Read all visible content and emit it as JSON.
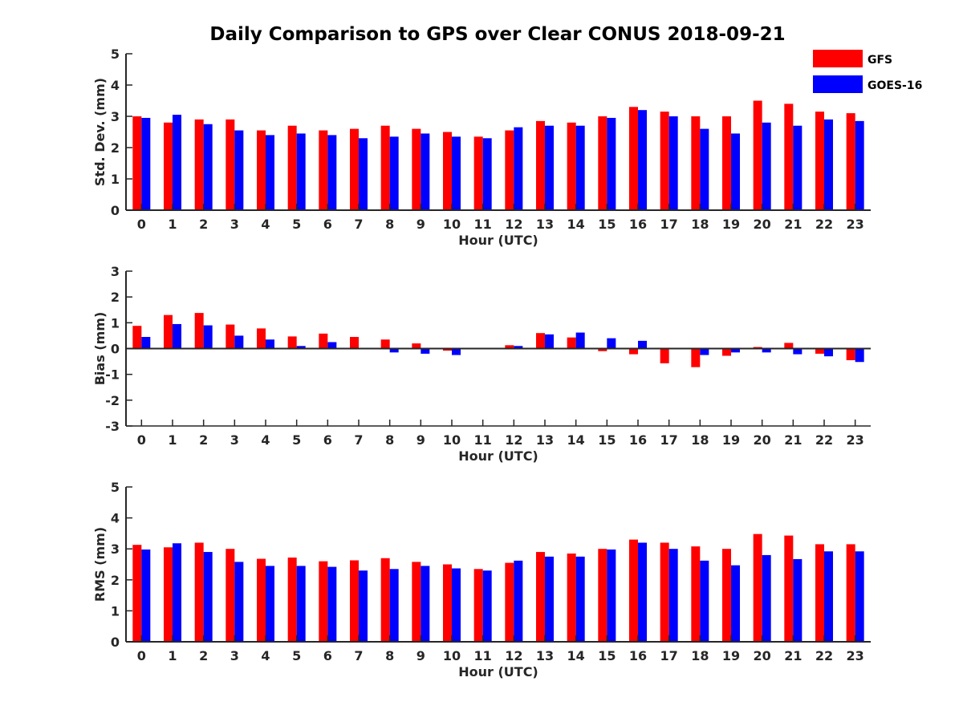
{
  "figure_title": "Daily Comparison to GPS over Clear CONUS 2018-09-21",
  "colors": {
    "GFS": "#ff0000",
    "GOES-16": "#0000ff",
    "axis": "#262626"
  },
  "legend": [
    {
      "name": "GFS",
      "color": "#ff0000"
    },
    {
      "name": "GOES-16",
      "color": "#0000ff"
    }
  ],
  "chart_data": [
    {
      "type": "bar",
      "title": "Daily Comparison to GPS over Clear CONUS 2018-09-21",
      "xlabel": "Hour (UTC)",
      "ylabel": "Std. Dev. (mm)",
      "ylim": [
        0,
        5
      ],
      "yticks": [
        0,
        1,
        2,
        3,
        4,
        5
      ],
      "grid": false,
      "legend_position": "top-right",
      "categories": [
        "0",
        "1",
        "2",
        "3",
        "4",
        "5",
        "6",
        "7",
        "8",
        "9",
        "10",
        "11",
        "12",
        "13",
        "14",
        "15",
        "16",
        "17",
        "18",
        "19",
        "20",
        "21",
        "22",
        "23"
      ],
      "series": [
        {
          "name": "GFS",
          "values": [
            3.0,
            2.8,
            2.9,
            2.9,
            2.55,
            2.7,
            2.55,
            2.6,
            2.7,
            2.6,
            2.5,
            2.35,
            2.55,
            2.85,
            2.8,
            3.0,
            3.3,
            3.15,
            3.0,
            3.0,
            3.5,
            3.4,
            3.15,
            3.1
          ]
        },
        {
          "name": "GOES-16",
          "values": [
            2.95,
            3.05,
            2.75,
            2.55,
            2.4,
            2.45,
            2.4,
            2.3,
            2.35,
            2.45,
            2.35,
            2.3,
            2.65,
            2.7,
            2.7,
            2.95,
            3.2,
            3.0,
            2.6,
            2.45,
            2.8,
            2.7,
            2.9,
            2.85
          ]
        }
      ]
    },
    {
      "type": "bar",
      "xlabel": "Hour (UTC)",
      "ylabel": "Bias (mm)",
      "ylim": [
        -3,
        3
      ],
      "yticks": [
        -3,
        -2,
        -1,
        0,
        1,
        2,
        3
      ],
      "grid": false,
      "categories": [
        "0",
        "1",
        "2",
        "3",
        "4",
        "5",
        "6",
        "7",
        "8",
        "9",
        "10",
        "11",
        "12",
        "13",
        "14",
        "15",
        "16",
        "17",
        "18",
        "19",
        "20",
        "21",
        "22",
        "23"
      ],
      "series": [
        {
          "name": "GFS",
          "values": [
            0.88,
            1.3,
            1.38,
            0.93,
            0.78,
            0.47,
            0.58,
            0.45,
            0.35,
            0.2,
            -0.08,
            0.02,
            0.13,
            0.6,
            0.43,
            -0.1,
            -0.22,
            -0.57,
            -0.72,
            -0.28,
            0.06,
            0.22,
            -0.2,
            -0.45
          ]
        },
        {
          "name": "GOES-16",
          "values": [
            0.45,
            0.95,
            0.9,
            0.5,
            0.35,
            0.1,
            0.25,
            0.0,
            -0.15,
            -0.2,
            -0.25,
            0.0,
            0.1,
            0.55,
            0.62,
            0.4,
            0.3,
            0.0,
            -0.25,
            -0.15,
            -0.15,
            -0.22,
            -0.3,
            -0.52
          ]
        }
      ]
    },
    {
      "type": "bar",
      "xlabel": "Hour (UTC)",
      "ylabel": "RMS (mm)",
      "ylim": [
        0,
        5
      ],
      "yticks": [
        0,
        1,
        2,
        3,
        4,
        5
      ],
      "grid": false,
      "categories": [
        "0",
        "1",
        "2",
        "3",
        "4",
        "5",
        "6",
        "7",
        "8",
        "9",
        "10",
        "11",
        "12",
        "13",
        "14",
        "15",
        "16",
        "17",
        "18",
        "19",
        "20",
        "21",
        "22",
        "23"
      ],
      "series": [
        {
          "name": "GFS",
          "values": [
            3.13,
            3.05,
            3.2,
            3.0,
            2.68,
            2.72,
            2.6,
            2.63,
            2.7,
            2.58,
            2.5,
            2.35,
            2.55,
            2.9,
            2.85,
            3.0,
            3.3,
            3.2,
            3.08,
            3.0,
            3.48,
            3.43,
            3.15,
            3.15
          ]
        },
        {
          "name": "GOES-16",
          "values": [
            2.98,
            3.18,
            2.9,
            2.58,
            2.45,
            2.45,
            2.42,
            2.3,
            2.35,
            2.45,
            2.37,
            2.3,
            2.62,
            2.75,
            2.75,
            2.98,
            3.2,
            3.0,
            2.62,
            2.47,
            2.8,
            2.67,
            2.92,
            2.92
          ]
        }
      ]
    }
  ]
}
